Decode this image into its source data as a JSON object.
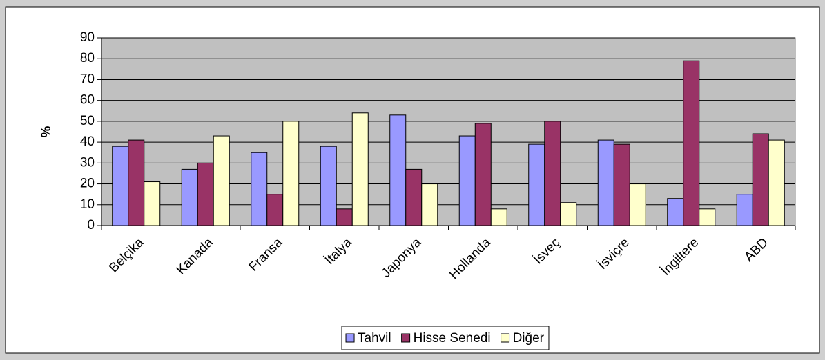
{
  "chart_data": {
    "type": "bar",
    "y_label": "%",
    "categories": [
      "Belçika",
      "Kanada",
      "Fransa",
      "İtalya",
      "Japonya",
      "Hollanda",
      "İsveç",
      "İsviçre",
      "İngiltere",
      "ABD"
    ],
    "series": [
      {
        "name": "Tahvil",
        "color": "#9999ff",
        "values": [
          38,
          27,
          35,
          38,
          53,
          43,
          39,
          41,
          13,
          15
        ]
      },
      {
        "name": "Hisse Senedi",
        "color": "#993366",
        "values": [
          41,
          30,
          15,
          8,
          27,
          49,
          50,
          39,
          79,
          44
        ]
      },
      {
        "name": "Diğer",
        "color": "#ffffcc",
        "values": [
          21,
          43,
          50,
          54,
          20,
          8,
          11,
          20,
          8,
          41
        ]
      }
    ],
    "ylim": [
      0,
      90
    ],
    "yticks": [
      0,
      10,
      20,
      30,
      40,
      50,
      60,
      70,
      80,
      90
    ],
    "grid": true,
    "legend": "bottom",
    "plot_background": "#c0c0c0"
  }
}
